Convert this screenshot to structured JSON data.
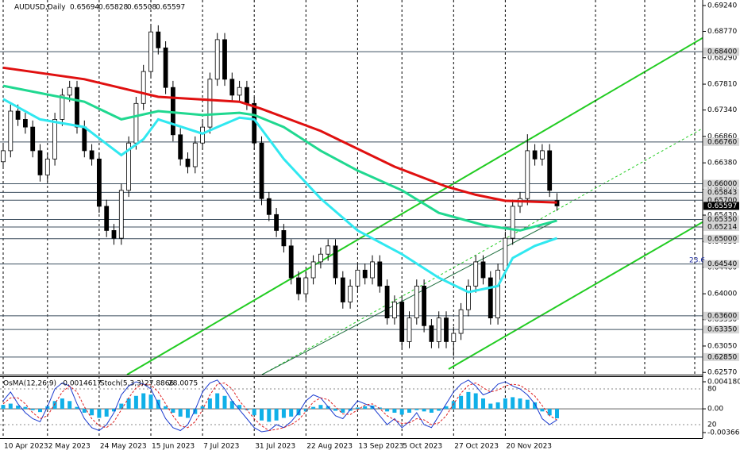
{
  "chart_data": [
    {
      "type": "candlestick",
      "title": "AUDUSD,Daily",
      "categories": [
        "10 Apr 2023",
        null,
        null,
        null,
        null,
        null,
        "2 May 2023",
        null,
        null,
        null,
        null,
        null,
        null,
        "24 May 2023",
        null,
        null,
        null,
        null,
        null,
        null,
        "15 Jun 2023",
        null,
        null,
        null,
        null,
        null,
        null,
        "7 Jul 2023",
        null,
        null,
        null,
        null,
        null,
        null,
        "31 Jul 2023",
        null,
        null,
        null,
        null,
        null,
        null,
        "22 Aug 2023",
        null,
        null,
        null,
        null,
        null,
        null,
        "13 Sep 2023",
        null,
        null,
        null,
        null,
        null,
        "5 Oct 2023",
        null,
        null,
        null,
        null,
        null,
        null,
        "27 Oct 2023",
        null,
        null,
        null,
        null,
        null,
        null,
        "20 Nov 2023",
        null,
        null,
        null,
        null,
        null,
        null,
        null
      ],
      "open": [
        0.664,
        0.666,
        0.6732,
        0.6717,
        0.6703,
        0.666,
        0.6616,
        0.6645,
        0.6717,
        0.6761,
        0.6775,
        0.6703,
        0.666,
        0.6645,
        0.6559,
        0.6515,
        0.6501,
        0.6588,
        0.6674,
        0.6746,
        0.6804,
        0.6876,
        0.6847,
        0.6775,
        0.6689,
        0.6645,
        0.6631,
        0.6674,
        0.6703,
        0.679,
        0.6862,
        0.679,
        0.6761,
        0.6775,
        0.6746,
        0.6674,
        0.6573,
        0.6544,
        0.6515,
        0.6487,
        0.6429,
        0.64,
        0.6429,
        0.6458,
        0.6472,
        0.6487,
        0.6429,
        0.6385,
        0.6414,
        0.6443,
        0.6429,
        0.6458,
        0.6414,
        0.6356,
        0.6385,
        0.6313,
        0.6356,
        0.6414,
        0.6342,
        0.6313,
        0.6356,
        0.6313,
        0.6328,
        0.6371,
        0.6414,
        0.6458,
        0.6429,
        0.6356,
        0.6443,
        0.6501,
        0.6559,
        0.6573,
        0.666,
        0.6645,
        0.666,
        0.65694
      ],
      "high": [
        0.6672,
        0.6744,
        0.6744,
        0.6729,
        0.6715,
        0.6672,
        0.6657,
        0.6729,
        0.6773,
        0.6787,
        0.6787,
        0.6715,
        0.6672,
        0.6657,
        0.6571,
        0.6527,
        0.66,
        0.6686,
        0.6758,
        0.6816,
        0.6888,
        0.6888,
        0.6859,
        0.6787,
        0.6701,
        0.6657,
        0.6686,
        0.6715,
        0.6802,
        0.6874,
        0.6874,
        0.6802,
        0.6787,
        0.6787,
        0.6758,
        0.6686,
        0.6585,
        0.6556,
        0.6527,
        0.6499,
        0.6441,
        0.6441,
        0.647,
        0.6484,
        0.6499,
        0.6499,
        0.6441,
        0.6426,
        0.6455,
        0.6455,
        0.647,
        0.647,
        0.6426,
        0.6397,
        0.6397,
        0.6368,
        0.6426,
        0.6426,
        0.6354,
        0.6368,
        0.6368,
        0.634,
        0.6383,
        0.6426,
        0.647,
        0.647,
        0.6441,
        0.6455,
        0.6513,
        0.6571,
        0.6585,
        0.669,
        0.6672,
        0.6672,
        0.6672,
        0.65828
      ],
      "low": [
        0.6628,
        0.6648,
        0.6705,
        0.6691,
        0.6648,
        0.6604,
        0.6604,
        0.6633,
        0.6705,
        0.6749,
        0.6691,
        0.6648,
        0.6633,
        0.6547,
        0.6503,
        0.6489,
        0.6489,
        0.6576,
        0.6662,
        0.6734,
        0.6792,
        0.6835,
        0.6763,
        0.6677,
        0.6633,
        0.6619,
        0.6619,
        0.6662,
        0.6691,
        0.6778,
        0.6778,
        0.6749,
        0.6749,
        0.6734,
        0.6662,
        0.6561,
        0.6532,
        0.6503,
        0.6475,
        0.6417,
        0.6388,
        0.6388,
        0.6417,
        0.6446,
        0.646,
        0.6417,
        0.6373,
        0.6373,
        0.6402,
        0.6417,
        0.6417,
        0.6402,
        0.6344,
        0.6344,
        0.6301,
        0.6301,
        0.6344,
        0.633,
        0.6301,
        0.6301,
        0.6301,
        0.6287,
        0.6316,
        0.6359,
        0.6402,
        0.6417,
        0.6344,
        0.6344,
        0.6431,
        0.6489,
        0.6547,
        0.6561,
        0.6633,
        0.6633,
        0.6576,
        0.65508
      ],
      "close": [
        0.666,
        0.6732,
        0.6717,
        0.6703,
        0.666,
        0.6616,
        0.6645,
        0.6717,
        0.6761,
        0.6775,
        0.6703,
        0.666,
        0.6645,
        0.6559,
        0.6515,
        0.6501,
        0.6588,
        0.6674,
        0.6746,
        0.6804,
        0.6876,
        0.6847,
        0.6775,
        0.6689,
        0.6645,
        0.6631,
        0.6674,
        0.6703,
        0.679,
        0.6862,
        0.679,
        0.6761,
        0.6775,
        0.6746,
        0.6674,
        0.6573,
        0.6544,
        0.6515,
        0.6487,
        0.6429,
        0.64,
        0.6429,
        0.6458,
        0.6472,
        0.6487,
        0.6429,
        0.6385,
        0.6414,
        0.6443,
        0.6429,
        0.6458,
        0.6414,
        0.6356,
        0.6385,
        0.6313,
        0.6356,
        0.6414,
        0.6342,
        0.6313,
        0.6356,
        0.6313,
        0.6328,
        0.6371,
        0.6414,
        0.6458,
        0.6429,
        0.6356,
        0.6443,
        0.6501,
        0.6559,
        0.6573,
        0.666,
        0.6645,
        0.666,
        0.6588,
        0.65597
      ],
      "up_color": "#ffffff",
      "down_color": "#000000",
      "ylim": [
        0.6253,
        0.6934
      ],
      "yticks": [
        {
          "value": 0.6924,
          "label": "0.69240"
        },
        {
          "value": 0.6877,
          "label": "0.68770"
        },
        {
          "value": 0.6829,
          "label": "0.68290"
        },
        {
          "value": 0.6781,
          "label": "0.67810"
        },
        {
          "value": 0.6734,
          "label": "0.67340"
        },
        {
          "value": 0.6686,
          "label": "0.66860"
        },
        {
          "value": 0.6638,
          "label": "0.66380"
        },
        {
          "value": 0.659,
          "label": "0.65900"
        },
        {
          "value": 0.6543,
          "label": "0.65430"
        },
        {
          "value": 0.6495,
          "label": "0.64950"
        },
        {
          "value": 0.6448,
          "label": "0.64480"
        },
        {
          "value": 0.64,
          "label": "0.64000"
        },
        {
          "value": 0.6353,
          "label": "0.63530"
        },
        {
          "value": 0.6305,
          "label": "0.63050"
        },
        {
          "value": 0.6257,
          "label": "0.62570"
        }
      ],
      "levels": [
        {
          "value": 0.684,
          "label": "0.68400"
        },
        {
          "value": 0.6676,
          "label": "0.66760"
        },
        {
          "value": 0.66,
          "label": "0.66000"
        },
        {
          "value": 0.65843,
          "label": "0.65843"
        },
        {
          "value": 0.657,
          "label": "0.65700"
        },
        {
          "value": 0.6535,
          "label": "0.65350"
        },
        {
          "value": 0.65214,
          "label": "0.65214"
        },
        {
          "value": 0.65,
          "label": "0.65000"
        },
        {
          "value": 0.6454,
          "label": "0.64540"
        },
        {
          "value": 0.636,
          "label": "0.63600"
        },
        {
          "value": 0.6335,
          "label": "0.63350"
        },
        {
          "value": 0.6285,
          "label": "0.62850"
        }
      ],
      "level_color": "#3d4f5f",
      "moving_averages": [
        {
          "color": "#e01010",
          "x": [
            0,
            11,
            21,
            32,
            35,
            43,
            53,
            60,
            64,
            68,
            75
          ],
          "values": [
            0.6811,
            0.679,
            0.6758,
            0.6749,
            0.6736,
            0.6696,
            0.6631,
            0.6595,
            0.658,
            0.6569,
            0.6566
          ]
        },
        {
          "color": "#20d890",
          "x": [
            0,
            11,
            16,
            21,
            27,
            32,
            34,
            38,
            43,
            48,
            54,
            59,
            65,
            70,
            75
          ],
          "values": [
            0.6778,
            0.6749,
            0.6717,
            0.6732,
            0.6725,
            0.6729,
            0.6725,
            0.6703,
            0.666,
            0.6624,
            0.6588,
            0.6547,
            0.6525,
            0.6515,
            0.6533
          ]
        },
        {
          "color": "#30e8f0",
          "x": [
            0,
            5,
            11,
            16,
            19,
            21,
            27,
            29,
            32,
            34,
            38,
            43,
            48,
            54,
            59,
            63,
            67,
            69,
            72,
            75
          ],
          "values": [
            0.6754,
            0.6717,
            0.6703,
            0.6652,
            0.6681,
            0.6717,
            0.6691,
            0.6703,
            0.672,
            0.6717,
            0.6645,
            0.6573,
            0.6515,
            0.6472,
            0.6429,
            0.6403,
            0.6414,
            0.6465,
            0.6487,
            0.6501
          ]
        }
      ],
      "annotations": [
        "23.6"
      ]
    },
    {
      "type": "oscillator",
      "osma": {
        "title": "OsMA(12,26,9)",
        "color": "#10b0e8",
        "values": [
          0.0006,
          0.0008,
          0.0005,
          0.0003,
          -0.0002,
          -0.0005,
          0.0004,
          0.0012,
          0.0016,
          0.0012,
          0.0003,
          -0.0006,
          -0.001,
          -0.0014,
          -0.0012,
          -0.0004,
          0.0008,
          0.0016,
          0.002,
          0.0024,
          0.0022,
          0.0014,
          0.0004,
          -0.0006,
          -0.0012,
          -0.0014,
          -0.0008,
          0.0004,
          0.0016,
          0.0024,
          0.002,
          0.0012,
          0.0006,
          -0.0002,
          -0.001,
          -0.0018,
          -0.002,
          -0.0018,
          -0.0014,
          -0.0012,
          -0.001,
          -0.0004,
          0.0003,
          0.0006,
          0.0004,
          -0.0003,
          -0.0006,
          -0.0003,
          0.0002,
          0.0004,
          0.0005,
          0.0002,
          -0.0004,
          -0.0006,
          -0.0009,
          -0.0006,
          -0.0002,
          -0.0004,
          -0.0006,
          -0.0003,
          0.0004,
          0.0012,
          0.002,
          0.0026,
          0.0024,
          0.0016,
          0.0008,
          0.001,
          0.0016,
          0.0018,
          0.0016,
          0.0014,
          0.001,
          -0.0004,
          -0.001,
          -0.0014617
        ],
        "ylim": [
          -0.003668,
          0.0041803
        ],
        "yticks": [
          0.0041803,
          {
            "value": 0,
            "label": "0.00"
          },
          -0.003668
        ]
      },
      "stoch": {
        "title": "Stoch(5,3,3)",
        "ylim": [
          0,
          100
        ],
        "yticks": [
          80,
          20
        ],
        "series": [
          {
            "color": "#1c3cd0",
            "dash": false,
            "values": [
              60,
              75,
              55,
              40,
              30,
              25,
              50,
              80,
              90,
              85,
              55,
              30,
              15,
              10,
              20,
              40,
              70,
              85,
              92,
              88,
              80,
              55,
              30,
              15,
              10,
              20,
              45,
              75,
              90,
              95,
              80,
              60,
              45,
              30,
              15,
              8,
              10,
              20,
              15,
              25,
              40,
              60,
              70,
              65,
              50,
              35,
              30,
              45,
              60,
              55,
              50,
              35,
              20,
              30,
              15,
              25,
              40,
              20,
              15,
              35,
              55,
              75,
              88,
              95,
              85,
              70,
              75,
              88,
              92,
              85,
              80,
              70,
              55,
              30,
              20,
              27.8866
            ]
          },
          {
            "color": "#e02020",
            "dash": true,
            "values": [
              55,
              65,
              65,
              55,
              40,
              30,
              35,
              55,
              75,
              85,
              75,
              50,
              30,
              18,
              15,
              25,
              45,
              65,
              82,
              88,
              87,
              75,
              55,
              35,
              18,
              15,
              25,
              45,
              70,
              88,
              90,
              80,
              60,
              45,
              30,
              18,
              10,
              12,
              15,
              20,
              28,
              42,
              58,
              65,
              62,
              50,
              38,
              37,
              45,
              53,
              55,
              47,
              35,
              28,
              22,
              23,
              30,
              28,
              20,
              23,
              35,
              55,
              73,
              86,
              90,
              82,
              75,
              78,
              85,
              88,
              86,
              78,
              68,
              52,
              35,
              28.0075
            ]
          }
        ]
      }
    }
  ]
}
